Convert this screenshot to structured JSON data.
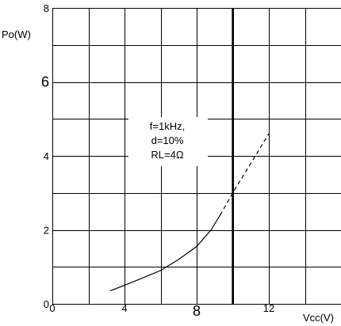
{
  "chart_data": {
    "type": "line",
    "title": "",
    "xlabel": "Vcc(V)",
    "ylabel": "Po(W)",
    "xlim": [
      0,
      16
    ],
    "ylim": [
      0,
      8
    ],
    "x_major_step": 2,
    "y_major_step": 1,
    "grid": true,
    "x_tick_labels": [
      {
        "value": 0,
        "text": "0",
        "size": "small"
      },
      {
        "value": 4,
        "text": "4",
        "size": "small"
      },
      {
        "value": 8,
        "text": "8",
        "size": "large"
      },
      {
        "value": 12,
        "text": "12",
        "size": "small"
      }
    ],
    "y_tick_labels": [
      {
        "value": 0,
        "text": "0",
        "size": "small"
      },
      {
        "value": 2,
        "text": "2",
        "size": "small"
      },
      {
        "value": 4,
        "text": "4",
        "size": "small"
      },
      {
        "value": 6,
        "text": "6",
        "size": "large"
      },
      {
        "value": 8,
        "text": "8",
        "size": "small"
      }
    ],
    "vertical_marker": {
      "x": 10
    },
    "series": [
      {
        "style": "solid",
        "points": [
          [
            3.2,
            0.35
          ],
          [
            4.0,
            0.5
          ],
          [
            5.0,
            0.7
          ],
          [
            6.0,
            0.9
          ],
          [
            7.0,
            1.2
          ],
          [
            8.0,
            1.55
          ],
          [
            8.8,
            2.0
          ],
          [
            9.3,
            2.4
          ]
        ]
      },
      {
        "style": "dashed",
        "points": [
          [
            9.3,
            2.4
          ],
          [
            10.0,
            3.0
          ],
          [
            11.0,
            3.8
          ],
          [
            12.0,
            4.6
          ]
        ]
      }
    ],
    "annotation": {
      "lines": [
        "f=1kHz,",
        "d=10%",
        "RL=4Ω"
      ]
    }
  }
}
